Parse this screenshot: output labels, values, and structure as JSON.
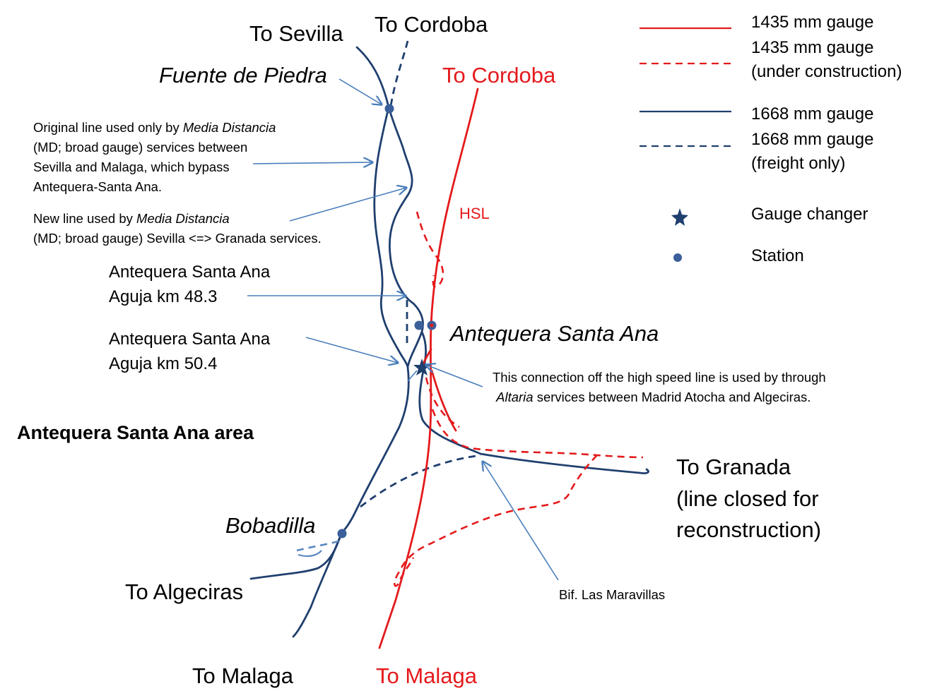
{
  "colors": {
    "standard_gauge": "#e41a1c",
    "broad_gauge": "#1f3f6e",
    "pointer": "#4a7ebb",
    "station_dot": "#3a5f9a"
  },
  "legend": {
    "items": [
      {
        "label": "1435 mm gauge",
        "style": "solid-red"
      },
      {
        "label": "1435 mm gauge\n(under construction)",
        "line1": "1435 mm gauge",
        "line2": "(under construction)",
        "style": "dashed-red"
      },
      {
        "label": "1668 mm gauge",
        "style": "solid-blue"
      },
      {
        "label": "1668 mm gauge\n(freight only)",
        "line1": "1668 mm gauge",
        "line2": "(freight only)",
        "style": "dashed-blue"
      },
      {
        "label": "Gauge changer",
        "symbol": "star"
      },
      {
        "label": "Station",
        "symbol": "dot"
      }
    ]
  },
  "destinations": {
    "sevilla": "To Sevilla",
    "cordoba_broad": "To Cordoba",
    "cordoba_hsl": "To Cordoba",
    "granada_line1": "To Granada",
    "granada_line2": "(line closed for",
    "granada_line3": "reconstruction)",
    "algeciras": "To Algeciras",
    "malaga_broad": "To Malaga",
    "malaga_hsl": "To Malaga"
  },
  "stations": {
    "fuente_de_piedra": "Fuente de Piedra",
    "antequera_santa_ana": "Antequera Santa Ana",
    "bobadilla": "Bobadilla"
  },
  "labels": {
    "hsl": "HSL",
    "area_title": "Antequera Santa Ana area",
    "aguja_483_line1": "Antequera Santa Ana",
    "aguja_483_line2": "Aguja km 48.3",
    "aguja_504_line1": "Antequera Santa Ana",
    "aguja_504_line2": "Aguja km 50.4",
    "bif_maravillas": "Bif. Las Maravillas"
  },
  "notes": {
    "original_line": {
      "l1_pre": "Original line used only by ",
      "l1_italic": "Media Distancia",
      "l2": "(MD; broad gauge) services between",
      "l3": "Sevilla and Malaga,  which bypass",
      "l4": "Antequera-Santa Ana."
    },
    "new_line": {
      "l1_pre": "New line used by ",
      "l1_italic": "Media Distancia",
      "l2": "(MD; broad gauge) Sevilla <=> Granada services."
    },
    "connection": {
      "l1": "This connection off the high speed line is used by through",
      "l2_italic": "Altaria",
      "l2_post": " services between Madrid Atocha and Algeciras."
    }
  }
}
